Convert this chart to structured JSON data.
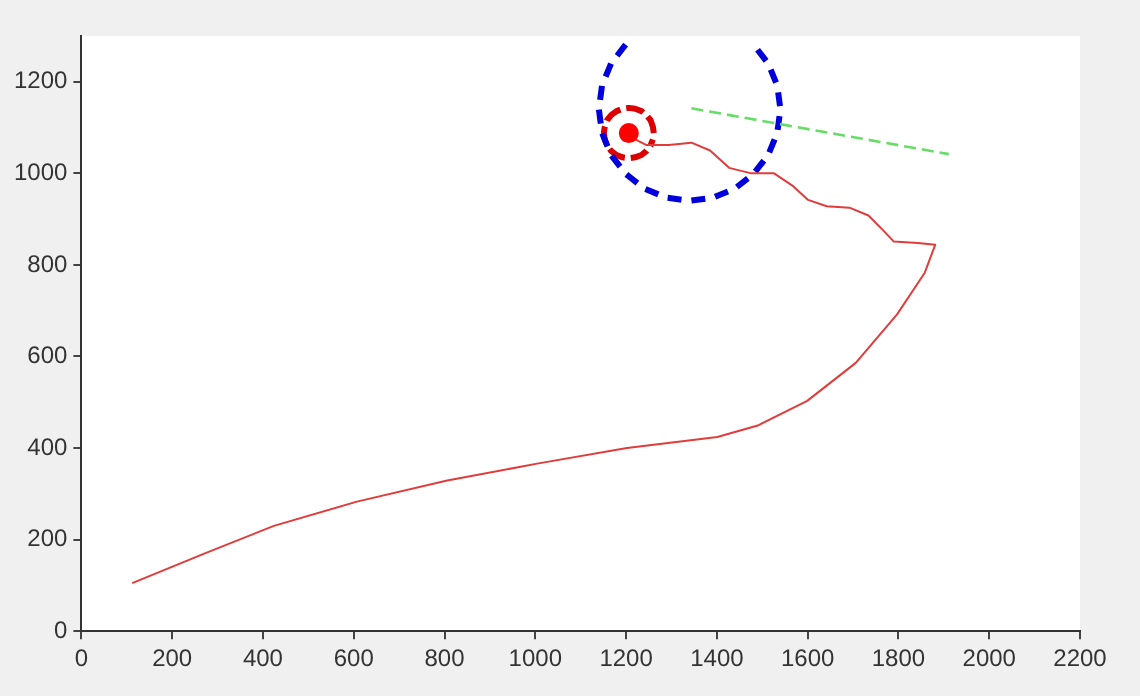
{
  "chart_data": {
    "type": "line",
    "xlim": [
      0,
      2200
    ],
    "ylim": [
      0,
      1300
    ],
    "xticks": [
      0,
      200,
      400,
      600,
      800,
      1000,
      1200,
      1400,
      1600,
      1800,
      2000,
      2200
    ],
    "yticks": [
      0,
      200,
      400,
      600,
      800,
      1000,
      1200
    ],
    "grid": false,
    "legend": false,
    "marker": "none",
    "line_style": "solid",
    "series": [
      {
        "type": "line",
        "color": "#e03c3c",
        "x": [
          112,
          272,
          424,
          607,
          806,
          1004,
          1202,
          1401,
          1492,
          1599,
          1706,
          1797,
          1858,
          1881,
          1843,
          1790,
          1767,
          1734,
          1692,
          1642,
          1601,
          1568,
          1526,
          1476,
          1427,
          1385,
          1344,
          1294,
          1244,
          1219
        ],
        "values": [
          105,
          170,
          230,
          283,
          329,
          366,
          400,
          424,
          450,
          503,
          586,
          692,
          783,
          844,
          848,
          851,
          875,
          908,
          925,
          928,
          942,
          972,
          1000,
          1000,
          1012,
          1050,
          1067,
          1062,
          1062,
          1075
        ]
      },
      {
        "type": "line",
        "color": "#66dd66",
        "line_style": "dashed",
        "x": [
          1344,
          1911
        ],
        "values": [
          1142,
          1042
        ]
      },
      {
        "type": "line",
        "color": "#0000dd",
        "line_style": "dashed",
        "x": [
          1199,
          1167,
          1147,
          1140,
          1147,
          1167,
          1199,
          1240,
          1288,
          1340,
          1392,
          1440,
          1481,
          1513,
          1533,
          1540,
          1533,
          1513,
          1481
        ],
        "values": [
          1281,
          1240,
          1192,
          1140,
          1088,
          1040,
          999,
          967,
          947,
          940,
          947,
          967,
          999,
          1040,
          1088,
          1140,
          1192,
          1240,
          1281
        ]
      },
      {
        "type": "line",
        "color": "#dd0000",
        "line_style": "dashed",
        "x": [
          1261,
          1259,
          1254,
          1245,
          1234,
          1220,
          1206,
          1192,
          1179,
          1167,
          1158,
          1153,
          1151,
          1153,
          1158,
          1167,
          1179,
          1192,
          1206,
          1220,
          1234,
          1245,
          1254,
          1259
        ],
        "values": [
          1088,
          1102,
          1116,
          1127,
          1136,
          1141,
          1143,
          1141,
          1136,
          1127,
          1116,
          1102,
          1088,
          1074,
          1061,
          1049,
          1040,
          1035,
          1033,
          1035,
          1040,
          1049,
          1061,
          1074
        ]
      },
      {
        "type": "scatter",
        "color": "#ff0000",
        "marker": "circle",
        "x": [
          1206
        ],
        "values": [
          1088
        ]
      }
    ]
  }
}
